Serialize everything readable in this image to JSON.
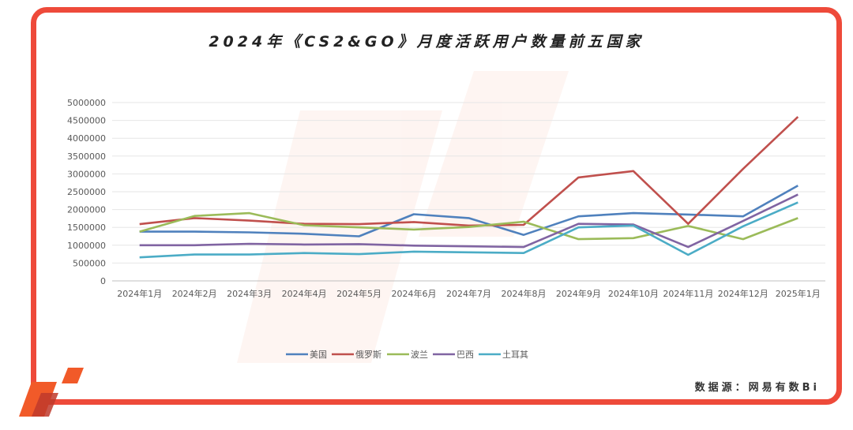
{
  "chart_data": {
    "type": "line",
    "title": "2024年《CS2&GO》月度活跃用户数量前五国家",
    "xlabel": "",
    "ylabel": "",
    "ylim": [
      0,
      5000000
    ],
    "yticks": [
      "5000000",
      "4500000",
      "4000000",
      "3500000",
      "3000000",
      "2500000",
      "2000000",
      "1500000",
      "1000000",
      "500000",
      "0"
    ],
    "ytick_values": [
      5000000,
      4500000,
      4000000,
      3500000,
      3000000,
      2500000,
      2000000,
      1500000,
      1000000,
      500000,
      0
    ],
    "categories": [
      "2024年1月",
      "2024年2月",
      "2024年3月",
      "2024年4月",
      "2024年5月",
      "2024年6月",
      "2024年7月",
      "2024年8月",
      "2024年9月",
      "2024年10月",
      "2024年11月",
      "2024年12月",
      "2025年1月"
    ],
    "legend_position": "bottom",
    "grid": true,
    "series": [
      {
        "name": "美国",
        "color": "#4f81bd",
        "values": [
          1380000,
          1380000,
          1360000,
          1320000,
          1250000,
          1870000,
          1760000,
          1290000,
          1810000,
          1900000,
          1860000,
          1810000,
          2670000
        ]
      },
      {
        "name": "俄罗斯",
        "color": "#c0504d",
        "values": [
          1590000,
          1760000,
          1690000,
          1600000,
          1590000,
          1650000,
          1550000,
          1570000,
          2900000,
          3080000,
          1600000,
          3140000,
          4600000
        ]
      },
      {
        "name": "波兰",
        "color": "#9bbb59",
        "values": [
          1380000,
          1820000,
          1900000,
          1560000,
          1500000,
          1440000,
          1510000,
          1660000,
          1170000,
          1200000,
          1540000,
          1170000,
          1760000
        ]
      },
      {
        "name": "巴西",
        "color": "#8064a2",
        "values": [
          1000000,
          1000000,
          1040000,
          1020000,
          1030000,
          990000,
          970000,
          950000,
          1600000,
          1580000,
          950000,
          1680000,
          2420000
        ]
      },
      {
        "name": "土耳其",
        "color": "#4bacc6",
        "values": [
          660000,
          740000,
          740000,
          780000,
          750000,
          820000,
          800000,
          780000,
          1500000,
          1550000,
          730000,
          1530000,
          2200000
        ]
      }
    ]
  },
  "source": "数据源：网易有数Bi"
}
